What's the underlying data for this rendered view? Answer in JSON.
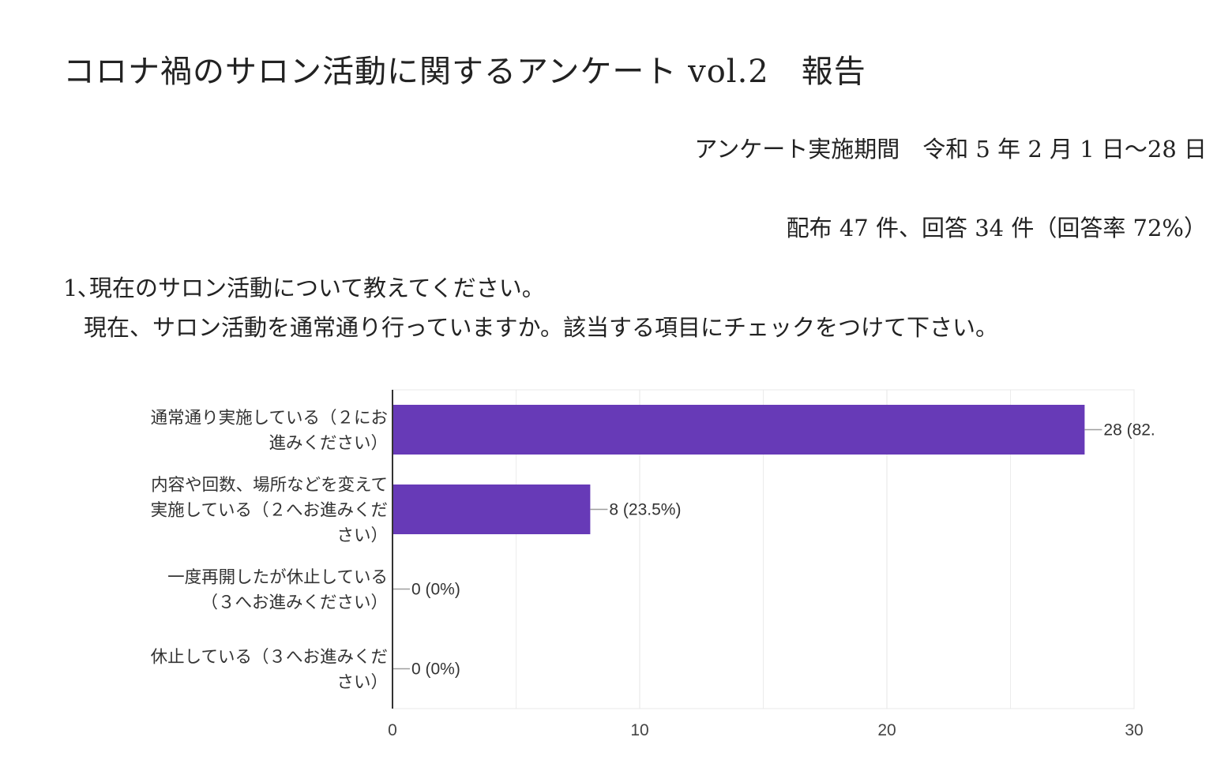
{
  "page": {
    "title": "コロナ禍のサロン活動に関するアンケート vol.2　報告",
    "survey_period": "アンケート実施期間　令和 5 年 2 月 1 日〜28 日",
    "distribution": "配布 47 件、回答 34 件（回答率 72%）"
  },
  "question": {
    "number_text": "1､現在のサロン活動について教えてください。",
    "sub_text": "現在、サロン活動を通常通り行っていますか。該当する項目にチェックをつけて下さい。"
  },
  "chart_data": {
    "type": "bar",
    "orientation": "horizontal",
    "categories": [
      [
        "通常通り実施している（２にお",
        "進みください）"
      ],
      [
        "内容や回数、場所などを変えて",
        "実施している（２へお進みくだ",
        "さい）"
      ],
      [
        "一度再開したが休止している",
        "（３へお進みください）"
      ],
      [
        "休止している（３へお進みくだ",
        "さい）"
      ]
    ],
    "values": [
      28,
      8,
      0,
      0
    ],
    "data_labels": [
      "28 (82.",
      "8 (23.5%)",
      "0 (0%)",
      "0 (0%)"
    ],
    "xlim": [
      0,
      30
    ],
    "xticks": [
      0,
      10,
      20,
      30
    ],
    "grid": true,
    "bar_color": "#673ab7",
    "grid_color": "#e8e8e8",
    "axis_color": "#333333"
  }
}
